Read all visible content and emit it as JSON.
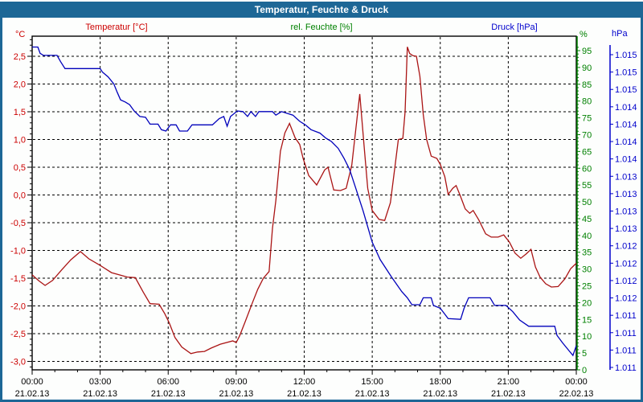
{
  "window": {
    "title": "Temperatur, Feuchte & Druck"
  },
  "legend": {
    "temperature_label": "Temperatur [°C]",
    "humidity_label": "rel. Feuchte [%]",
    "pressure_label": "Druck [hPa]"
  },
  "axis_headers": {
    "left_unit": "°C",
    "percent_unit": "%",
    "pressure_unit": "hPa"
  },
  "colors": {
    "titlebar": "#1d6796",
    "frame": "#1d6796",
    "temperature_line": "#aa1414",
    "temperature_text": "#cc0000",
    "humidity_text": "#008000",
    "pressure_text": "#0000cc",
    "pressure_line": "#0000bb",
    "grid": "#000000"
  },
  "axes": {
    "left": {
      "tick_labels": [
        "2,5",
        "2,0",
        "1,5",
        "1,0",
        "0,5",
        "0,0",
        "-0,5",
        "-1,0",
        "-1,5",
        "-2,0",
        "-2,5",
        "-3,0"
      ],
      "tick_values": [
        2.5,
        2.0,
        1.5,
        1.0,
        0.5,
        0.0,
        -0.5,
        -1.0,
        -1.5,
        -2.0,
        -2.5,
        -3.0
      ]
    },
    "percent": {
      "tick_values": [
        95,
        90,
        85,
        80,
        75,
        70,
        65,
        60,
        55,
        50,
        45,
        40,
        35,
        30,
        25,
        20,
        15,
        10,
        5,
        0
      ]
    },
    "pressure": {
      "tick_labels": [
        "1.015",
        "1.015",
        "1.015",
        "1.014",
        "1.014",
        "1.014",
        "1.014",
        "1.013",
        "1.013",
        "1.013",
        "1.013",
        "1.012",
        "1.012",
        "1.012",
        "1.012",
        "1.011",
        "1.011",
        "1.011",
        "1.011"
      ]
    },
    "x": {
      "times": [
        "00:00",
        "03:00",
        "06:00",
        "09:00",
        "12:00",
        "15:00",
        "18:00",
        "21:00",
        "00:00"
      ],
      "dates": [
        "21.02.13",
        "21.02.13",
        "21.02.13",
        "21.02.13",
        "21.02.13",
        "21.02.13",
        "21.02.13",
        "21.02.13",
        "22.02.13"
      ]
    }
  },
  "chart_data": {
    "type": "line",
    "title": "Temperatur, Feuchte & Druck",
    "x_axis": {
      "unit": "time",
      "range_hours": [
        0,
        24
      ],
      "start": "21.02.13 00:00",
      "end": "22.02.13 00:00",
      "major_tick_hours": 3,
      "minor_tick_hours": 1
    },
    "left_axis": {
      "label": "Temperatur [°C]",
      "range": [
        -3.17,
        2.86
      ],
      "tick_step": 0.5
    },
    "percent_axis": {
      "label": "rel. Feuchte [%]",
      "range": [
        0,
        96.2
      ],
      "tick_step": 5,
      "note": "no humidity curve visible in plot"
    },
    "pressure_axis": {
      "label": "Druck [hPa]",
      "range": [
        1010.66,
        1015.47
      ],
      "tick_step": 0.25
    },
    "grid": "black dashed; horizontal every 0.5 °C, vertical every 3 h",
    "series": [
      {
        "name": "Temperatur",
        "unit": "°C",
        "color": "#aa1414",
        "axis": "left",
        "points": [
          [
            0,
            -1.44
          ],
          [
            0.3,
            -1.55
          ],
          [
            0.57,
            -1.63
          ],
          [
            0.9,
            -1.54
          ],
          [
            1.3,
            -1.35
          ],
          [
            1.7,
            -1.17
          ],
          [
            2.13,
            -1.02
          ],
          [
            2.5,
            -1.15
          ],
          [
            3.0,
            -1.27
          ],
          [
            3.5,
            -1.4
          ],
          [
            4.2,
            -1.48
          ],
          [
            4.55,
            -1.49
          ],
          [
            4.9,
            -1.75
          ],
          [
            5.2,
            -1.96
          ],
          [
            5.6,
            -1.97
          ],
          [
            5.85,
            -2.14
          ],
          [
            6.05,
            -2.31
          ],
          [
            6.3,
            -2.57
          ],
          [
            6.6,
            -2.74
          ],
          [
            7.0,
            -2.86
          ],
          [
            7.3,
            -2.83
          ],
          [
            7.6,
            -2.82
          ],
          [
            7.9,
            -2.76
          ],
          [
            8.3,
            -2.69
          ],
          [
            8.85,
            -2.63
          ],
          [
            9.0,
            -2.66
          ],
          [
            9.15,
            -2.54
          ],
          [
            9.4,
            -2.28
          ],
          [
            9.7,
            -1.96
          ],
          [
            9.95,
            -1.7
          ],
          [
            10.2,
            -1.5
          ],
          [
            10.45,
            -1.38
          ],
          [
            10.6,
            -0.6
          ],
          [
            10.75,
            -0.1
          ],
          [
            10.95,
            0.79
          ],
          [
            11.15,
            1.12
          ],
          [
            11.35,
            1.29
          ],
          [
            11.6,
            1.03
          ],
          [
            11.8,
            0.91
          ],
          [
            11.95,
            0.66
          ],
          [
            12.2,
            0.35
          ],
          [
            12.55,
            0.18
          ],
          [
            12.9,
            0.45
          ],
          [
            13.05,
            0.5
          ],
          [
            13.3,
            0.09
          ],
          [
            13.6,
            0.08
          ],
          [
            13.85,
            0.12
          ],
          [
            14.1,
            0.54
          ],
          [
            14.35,
            1.46
          ],
          [
            14.45,
            1.82
          ],
          [
            14.65,
            0.83
          ],
          [
            14.8,
            0.12
          ],
          [
            15.0,
            -0.28
          ],
          [
            15.3,
            -0.44
          ],
          [
            15.55,
            -0.46
          ],
          [
            15.8,
            -0.14
          ],
          [
            16.0,
            0.5
          ],
          [
            16.15,
            1.0
          ],
          [
            16.35,
            1.02
          ],
          [
            16.45,
            1.5
          ],
          [
            16.55,
            2.67
          ],
          [
            16.65,
            2.55
          ],
          [
            16.8,
            2.51
          ],
          [
            16.95,
            2.5
          ],
          [
            17.1,
            2.14
          ],
          [
            17.25,
            1.45
          ],
          [
            17.4,
            1.0
          ],
          [
            17.6,
            0.7
          ],
          [
            17.85,
            0.66
          ],
          [
            18.0,
            0.55
          ],
          [
            18.2,
            0.33
          ],
          [
            18.35,
            0.01
          ],
          [
            18.55,
            0.12
          ],
          [
            18.7,
            0.17
          ],
          [
            18.9,
            -0.03
          ],
          [
            19.1,
            -0.25
          ],
          [
            19.3,
            -0.33
          ],
          [
            19.45,
            -0.28
          ],
          [
            19.7,
            -0.45
          ],
          [
            20.0,
            -0.7
          ],
          [
            20.25,
            -0.76
          ],
          [
            20.55,
            -0.76
          ],
          [
            20.8,
            -0.72
          ],
          [
            21.05,
            -0.85
          ],
          [
            21.3,
            -1.05
          ],
          [
            21.55,
            -1.14
          ],
          [
            21.8,
            -1.06
          ],
          [
            22.0,
            -0.98
          ],
          [
            22.2,
            -1.3
          ],
          [
            22.4,
            -1.48
          ],
          [
            22.65,
            -1.6
          ],
          [
            22.9,
            -1.66
          ],
          [
            23.2,
            -1.65
          ],
          [
            23.5,
            -1.51
          ],
          [
            23.75,
            -1.33
          ],
          [
            24,
            -1.23
          ]
        ]
      },
      {
        "name": "Druck",
        "unit": "hPa",
        "color": "#0000bb",
        "axis": "pressure",
        "points": [
          [
            0,
            1015.31
          ],
          [
            0.25,
            1015.31
          ],
          [
            0.35,
            1015.22
          ],
          [
            0.5,
            1015.19
          ],
          [
            1.1,
            1015.19
          ],
          [
            1.25,
            1015.1
          ],
          [
            1.45,
            1015.0
          ],
          [
            3.0,
            1015.0
          ],
          [
            3.1,
            1014.95
          ],
          [
            3.35,
            1014.88
          ],
          [
            3.6,
            1014.78
          ],
          [
            3.75,
            1014.66
          ],
          [
            3.9,
            1014.55
          ],
          [
            4.1,
            1014.52
          ],
          [
            4.3,
            1014.48
          ],
          [
            4.5,
            1014.39
          ],
          [
            4.75,
            1014.31
          ],
          [
            5.0,
            1014.3
          ],
          [
            5.2,
            1014.2
          ],
          [
            5.55,
            1014.2
          ],
          [
            5.7,
            1014.12
          ],
          [
            5.9,
            1014.1
          ],
          [
            6.1,
            1014.19
          ],
          [
            6.35,
            1014.19
          ],
          [
            6.5,
            1014.1
          ],
          [
            6.85,
            1014.1
          ],
          [
            7.05,
            1014.19
          ],
          [
            7.95,
            1014.19
          ],
          [
            8.25,
            1014.28
          ],
          [
            8.45,
            1014.31
          ],
          [
            8.6,
            1014.17
          ],
          [
            8.75,
            1014.31
          ],
          [
            9.05,
            1014.39
          ],
          [
            9.3,
            1014.38
          ],
          [
            9.5,
            1014.31
          ],
          [
            9.65,
            1014.38
          ],
          [
            9.85,
            1014.31
          ],
          [
            10.0,
            1014.38
          ],
          [
            10.6,
            1014.38
          ],
          [
            10.75,
            1014.33
          ],
          [
            11.0,
            1014.38
          ],
          [
            11.5,
            1014.33
          ],
          [
            11.8,
            1014.24
          ],
          [
            12.05,
            1014.19
          ],
          [
            12.3,
            1014.12
          ],
          [
            12.7,
            1014.07
          ],
          [
            12.95,
            1014.0
          ],
          [
            13.2,
            1013.95
          ],
          [
            13.5,
            1013.85
          ],
          [
            13.75,
            1013.71
          ],
          [
            14.0,
            1013.55
          ],
          [
            14.25,
            1013.3
          ],
          [
            14.6,
            1012.95
          ],
          [
            15.0,
            1012.5
          ],
          [
            15.35,
            1012.25
          ],
          [
            15.85,
            1012.0
          ],
          [
            16.3,
            1011.79
          ],
          [
            16.55,
            1011.7
          ],
          [
            16.75,
            1011.6
          ],
          [
            17.1,
            1011.6
          ],
          [
            17.25,
            1011.7
          ],
          [
            17.6,
            1011.7
          ],
          [
            17.7,
            1011.59
          ],
          [
            18.0,
            1011.55
          ],
          [
            18.35,
            1011.4
          ],
          [
            18.9,
            1011.39
          ],
          [
            19.05,
            1011.55
          ],
          [
            19.25,
            1011.7
          ],
          [
            20.2,
            1011.7
          ],
          [
            20.4,
            1011.59
          ],
          [
            20.9,
            1011.59
          ],
          [
            21.2,
            1011.5
          ],
          [
            21.5,
            1011.38
          ],
          [
            21.9,
            1011.29
          ],
          [
            23.05,
            1011.29
          ],
          [
            23.15,
            1011.16
          ],
          [
            23.4,
            1011.05
          ],
          [
            23.7,
            1010.93
          ],
          [
            23.85,
            1010.87
          ],
          [
            24,
            1011.01
          ]
        ]
      }
    ]
  }
}
